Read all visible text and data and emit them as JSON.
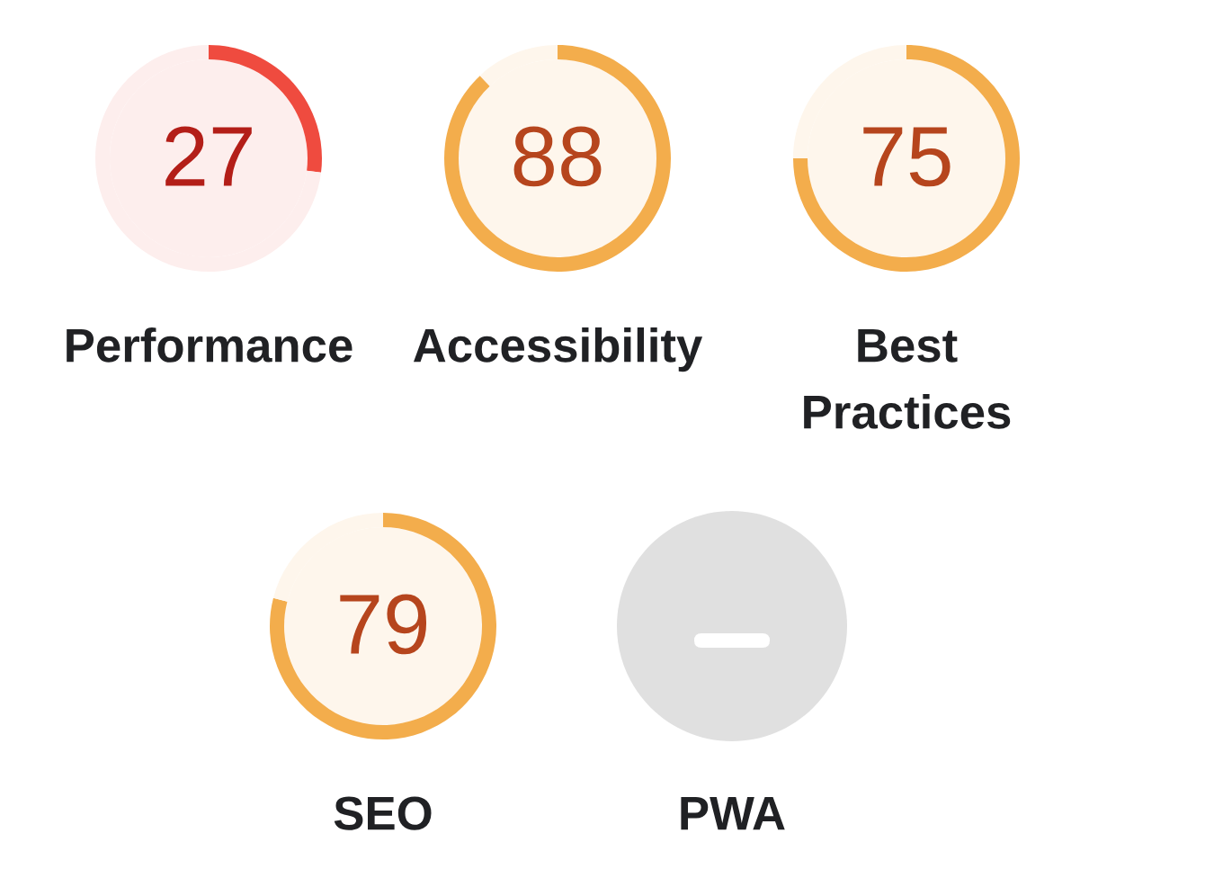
{
  "chart_data": [
    {
      "type": "donut",
      "title": "Performance",
      "categories": [
        null,
        null
      ],
      "values": [
        27,
        73
      ],
      "colors": [
        "#ef4b3f",
        "#fdeeed"
      ],
      "value_labels": [
        "27",
        null
      ]
    },
    {
      "type": "donut",
      "title": "Accessibility",
      "categories": [
        null,
        null
      ],
      "values": [
        88,
        12
      ],
      "colors": [
        "#f3ad4c",
        "#fef6ec"
      ],
      "value_labels": [
        "88",
        null
      ]
    },
    {
      "type": "donut",
      "title": "Best Practices",
      "categories": [
        null,
        null
      ],
      "values": [
        75,
        25
      ],
      "colors": [
        "#f3ad4c",
        "#fef6ec"
      ],
      "value_labels": [
        "75",
        null
      ]
    },
    {
      "type": "donut",
      "title": "SEO",
      "categories": [
        null,
        null
      ],
      "values": [
        79,
        21
      ],
      "colors": [
        "#f3ad4c",
        "#fef6ec"
      ],
      "value_labels": [
        "79",
        null
      ]
    },
    {
      "type": "other",
      "title": "PWA"
    }
  ]
}
